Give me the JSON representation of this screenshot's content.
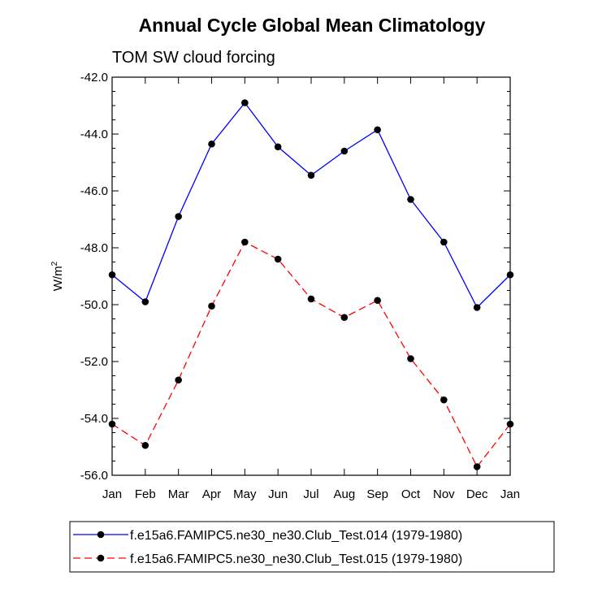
{
  "chart_data": {
    "type": "line",
    "title": "Annual Cycle Global Mean Climatology",
    "subtitle": "TOM SW cloud forcing",
    "ylabel": "W/m",
    "ylabel_sup": "2",
    "xlabel": "",
    "categories": [
      "Jan",
      "Feb",
      "Mar",
      "Apr",
      "May",
      "Jun",
      "Jul",
      "Aug",
      "Sep",
      "Oct",
      "Nov",
      "Dec",
      "Jan"
    ],
    "ylim": [
      -56.0,
      -42.0
    ],
    "yticks": [
      -42.0,
      -44.0,
      -46.0,
      -48.0,
      -50.0,
      -52.0,
      -54.0,
      -56.0
    ],
    "ytick_labels": [
      "-42.0",
      "-44.0",
      "-46.0",
      "-48.0",
      "-50.0",
      "-52.0",
      "-54.0",
      "-56.0"
    ],
    "series": [
      {
        "name": "f.e15a6.FAMIPC5.ne30_ne30.Club_Test.014 (1979-1980)",
        "color": "#0000ff",
        "dash": "solid",
        "values": [
          -48.95,
          -49.9,
          -46.9,
          -44.35,
          -42.9,
          -44.45,
          -45.45,
          -44.6,
          -43.85,
          -46.3,
          -47.8,
          -50.1,
          -48.95
        ]
      },
      {
        "name": "f.e15a6.FAMIPC5.ne30_ne30.Club_Test.015 (1979-1980)",
        "color": "#ff0000",
        "dash": "dashed",
        "values": [
          -54.2,
          -54.95,
          -52.65,
          -50.05,
          -47.8,
          -48.4,
          -49.8,
          -50.45,
          -49.85,
          -51.9,
          -53.35,
          -55.7,
          -54.2
        ]
      }
    ]
  }
}
